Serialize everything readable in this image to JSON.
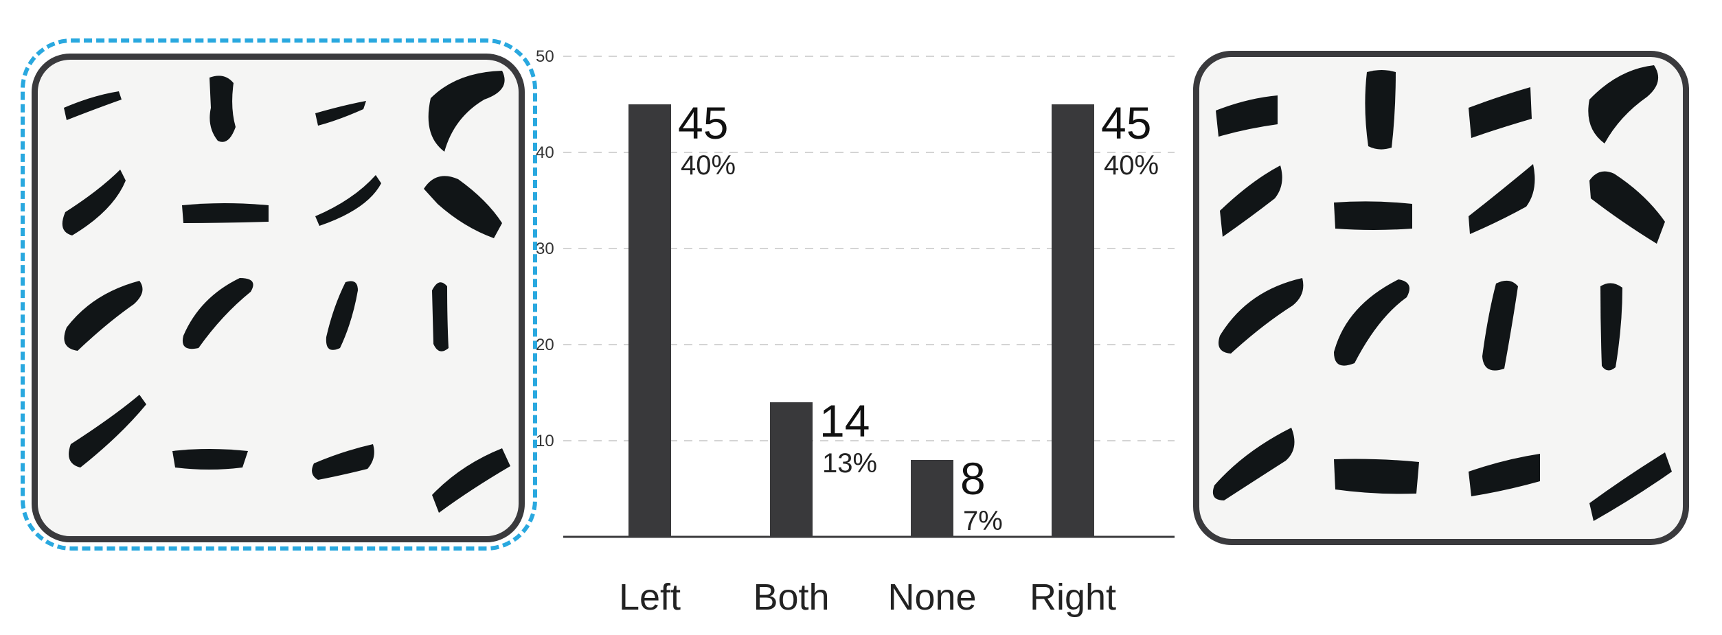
{
  "chart_data": {
    "type": "bar",
    "categories": [
      "Left",
      "Both",
      "None",
      "Right"
    ],
    "values": [
      45,
      14,
      8,
      45
    ],
    "percent_labels": [
      "40%",
      "13%",
      "7%",
      "40%"
    ],
    "ylim": [
      0,
      50
    ],
    "yticks": [
      10,
      20,
      30,
      40,
      50
    ],
    "grid": "dashed horizontal",
    "bar_color": "#39393b"
  },
  "colors": {
    "selection": "#29a8df",
    "frame": "#3a3a3d",
    "ink": "#111517"
  },
  "images": {
    "left": "brush-stroke-grid-scanned",
    "right": "brush-stroke-grid-generated"
  }
}
